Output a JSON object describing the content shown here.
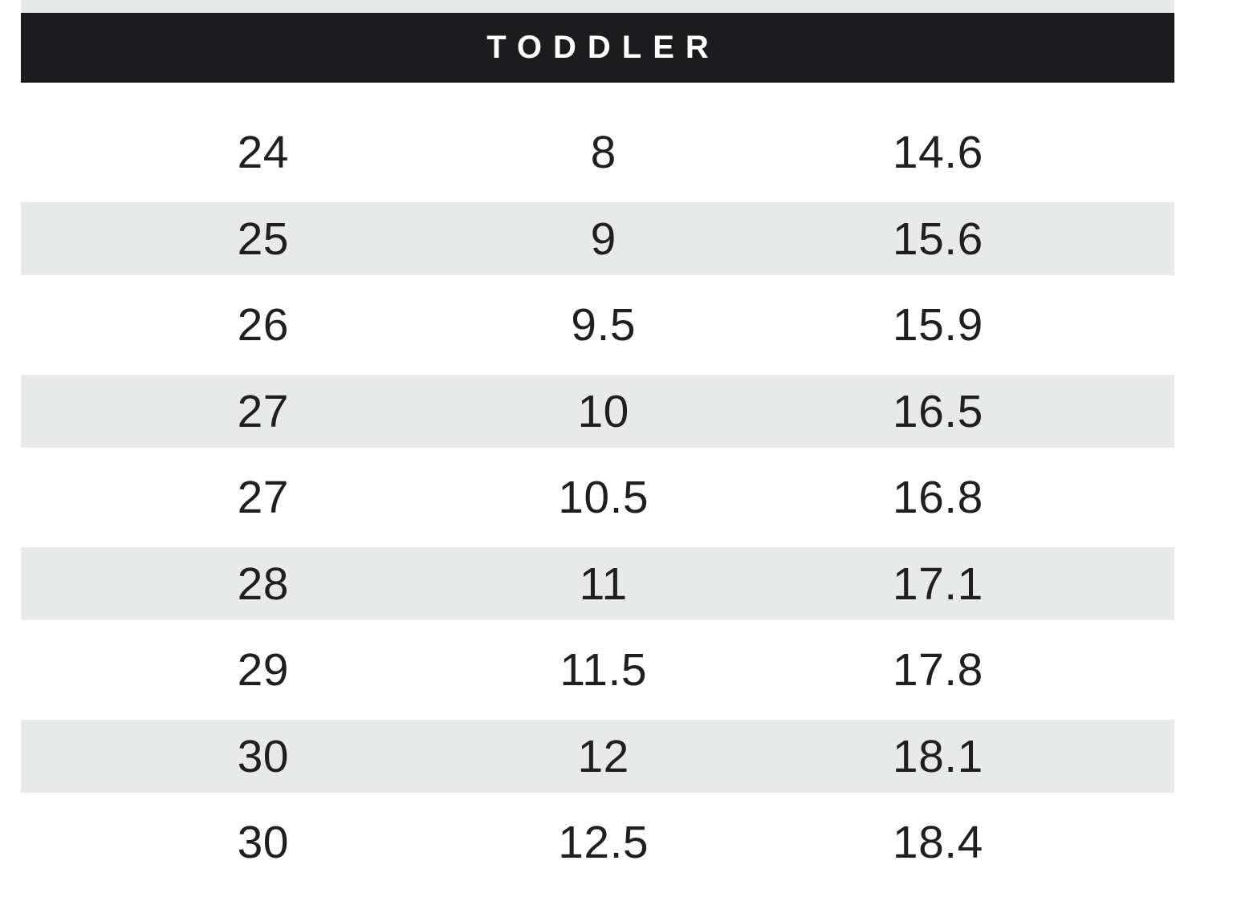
{
  "chart_data": {
    "type": "table",
    "title": "TODDLER",
    "rows": [
      [
        "24",
        "8",
        "14.6"
      ],
      [
        "25",
        "9",
        "15.6"
      ],
      [
        "26",
        "9.5",
        "15.9"
      ],
      [
        "27",
        "10",
        "16.5"
      ],
      [
        "27",
        "10.5",
        "16.8"
      ],
      [
        "28",
        "11",
        "17.1"
      ],
      [
        "29",
        "11.5",
        "17.8"
      ],
      [
        "30",
        "12",
        "18.1"
      ],
      [
        "30",
        "12.5",
        "18.4"
      ]
    ],
    "layout": {
      "striped_rows": "even rows shaded",
      "column_alignment": "center",
      "header_style": "black band, white uppercase letter-spaced title"
    }
  },
  "colors": {
    "header_bg": "#1c1c1e",
    "header_text": "#ffffff",
    "stripe": "#e8e9e9",
    "cell_text": "#1f1f1f",
    "page_bg": "#ffffff"
  }
}
